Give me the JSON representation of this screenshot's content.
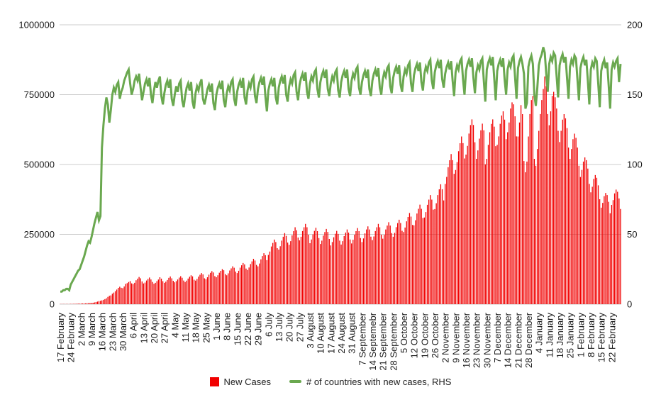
{
  "legend": {
    "new_cases": {
      "label": "New Cases",
      "color": "#f10000"
    },
    "countries": {
      "label": "# of countries with new cases, RHS",
      "color": "#6aa84f"
    }
  },
  "chart_data": {
    "type": "combo (bar + line)",
    "title": "",
    "grid": true,
    "legend_position": "bottom",
    "background": "#ffffff",
    "gridline_color": "#cccccc",
    "axis_text_color": "#1a1a1a",
    "left_axis": {
      "series": "New Cases",
      "range": [
        0,
        1000000
      ],
      "ticks": [
        "0",
        "250000",
        "500000",
        "750000",
        "1000000"
      ]
    },
    "right_axis": {
      "series": "# of countries with new cases, RHS",
      "range": [
        0,
        200
      ],
      "ticks": [
        "0",
        "50",
        "100",
        "150",
        "200"
      ]
    },
    "x_tick_interval_days": 7,
    "x_tick_labels": [
      "17 February",
      "24 February",
      "2 March",
      "9 March",
      "16 March",
      "23 March",
      "30 March",
      "6 April",
      "13 April",
      "20 April",
      "27 April",
      "4 May",
      "11 May",
      "18 May",
      "25 May",
      "1 June",
      "8 June",
      "15 June",
      "22 June",
      "29 June",
      "6 July",
      "13 July",
      "20 July",
      "27 July",
      "3 August",
      "10 August",
      "17 August",
      "24 August",
      "31 August",
      "7 September",
      "14 Septemebr",
      "21 September",
      "28 September",
      "5 October",
      "12 October",
      "19 October",
      "26 October",
      "2 November",
      "9 November",
      "16 November",
      "23 November",
      "30 November",
      "7 December",
      "14 December",
      "21 December",
      "28 December",
      "4 January",
      "11 January",
      "18 January",
      "25 January",
      "1 February",
      "8 February",
      "15 February",
      "22 February"
    ],
    "series": [
      {
        "name": "New Cases",
        "type": "bar",
        "axis": "left",
        "color": "#f10000",
        "values": [
          600,
          500,
          500,
          550,
          600,
          700,
          650,
          900,
          1100,
          1250,
          1400,
          1550,
          1800,
          2000,
          2200,
          2400,
          2650,
          2900,
          3300,
          3800,
          4100,
          4500,
          5100,
          6500,
          7600,
          9100,
          11000,
          12100,
          13500,
          15600,
          18200,
          21300,
          26100,
          30200,
          31300,
          37400,
          41500,
          46600,
          52300,
          58400,
          62500,
          58600,
          57400,
          63500,
          72600,
          75300,
          79400,
          82500,
          74600,
          72400,
          76500,
          85600,
          91300,
          97400,
          92500,
          81600,
          74400,
          77500,
          84600,
          90300,
          95400,
          88500,
          79600,
          73400,
          76500,
          82600,
          88300,
          96400,
          91500,
          82600,
          76400,
          80500,
          86600,
          94300,
          99400,
          92500,
          83600,
          78400,
          82500,
          88600,
          95300,
          100400,
          94500,
          84600,
          79400,
          84500,
          91600,
          98300,
          103400,
          99500,
          87600,
          84400,
          90500,
          98600,
          105300,
          111400,
          106500,
          92600,
          89400,
          96500,
          105600,
          112300,
          118400,
          113500,
          100600,
          96400,
          103500,
          112600,
          119300,
          125400,
          121500,
          107600,
          103400,
          110500,
          120600,
          128300,
          135400,
          130500,
          116600,
          111400,
          119500,
          130600,
          139300,
          147400,
          142500,
          127600,
          122400,
          131500,
          143600,
          153300,
          162400,
          156500,
          140600,
          135400,
          145500,
          160600,
          172300,
          182400,
          175500,
          157600,
          176400,
          188500,
          206600,
          219300,
          231400,
          222500,
          200600,
          195400,
          207500,
          227600,
          241300,
          254400,
          244500,
          220600,
          212400,
          225500,
          246600,
          261300,
          275400,
          264500,
          238600,
          228400,
          241500,
          261600,
          275300,
          287400,
          275500,
          248600,
          218400,
          231500,
          249600,
          262300,
          273400,
          261500,
          236600,
          215400,
          227500,
          245600,
          258300,
          269400,
          258500,
          233600,
          210400,
          222500,
          239600,
          252300,
          262400,
          251500,
          227600,
          213400,
          225500,
          243600,
          256300,
          267400,
          256500,
          231600,
          217400,
          230500,
          248600,
          261300,
          272400,
          261500,
          236600,
          222400,
          235500,
          253600,
          267300,
          278400,
          267500,
          241600,
          229400,
          242500,
          261600,
          275300,
          287400,
          275500,
          248600,
          234400,
          248500,
          267600,
          281300,
          293400,
          281500,
          254600,
          241400,
          255500,
          275600,
          290300,
          302400,
          290500,
          262600,
          258400,
          274500,
          296600,
          312300,
          326400,
          313500,
          283600,
          282400,
          300500,
          324600,
          341300,
          356400,
          341500,
          308600,
          310400,
          329500,
          355600,
          374300,
          390400,
          374500,
          338600,
          340400,
          361500,
          390600,
          411300,
          429400,
          411500,
          371600,
          430400,
          455500,
          490600,
          515300,
          537400,
          515500,
          466600,
          480400,
          508500,
          547600,
          576300,
          600400,
          576500,
          521600,
          535400,
          566500,
          610600,
          641300,
          661400,
          641500,
          579600,
          520400,
          550500,
          592600,
          622300,
          646400,
          622500,
          500600,
          520400,
          570500,
          615600,
          645300,
          661400,
          635500,
          565600,
          570400,
          600500,
          645600,
          675300,
          690400,
          660500,
          590600,
          615400,
          650500,
          700600,
          722300,
          715400,
          672500,
          600600,
          600400,
          650500,
          712600,
          680300,
          512400,
          472500,
          510600,
          600400,
          680500,
          730600,
          745300,
          520400,
          495500,
          555600,
          620400,
          680500,
          730600,
          770300,
          815400,
          780500,
          680600,
          640400,
          690500,
          745600,
          760300,
          740400,
          700500,
          620600,
          580400,
          620500,
          660600,
          680300,
          665400,
          630500,
          560600,
          520400,
          555500,
          590600,
          610300,
          595400,
          560500,
          495600,
          455400,
          480500,
          510600,
          525300,
          515400,
          485500,
          430600,
          400400,
          420500,
          448600,
          462300,
          452400,
          425500,
          375600,
          345400,
          362500,
          386600,
          398300,
          390400,
          366500,
          325600,
          355400,
          372500,
          396600,
          410300,
          402400,
          378500,
          340600
        ]
      },
      {
        "name": "# of countries with new cases, RHS",
        "type": "line",
        "axis": "right",
        "color": "#6aa84f",
        "values": [
          9,
          9,
          10,
          10,
          11,
          11,
          10,
          14,
          16,
          18,
          20,
          22,
          24,
          25,
          28,
          31,
          34,
          38,
          42,
          45,
          44,
          48,
          53,
          58,
          62,
          66,
          60,
          63,
          112,
          128,
          140,
          148,
          143,
          130,
          139,
          150,
          155,
          152,
          157,
          159,
          147,
          152,
          155,
          160,
          163,
          166,
          168,
          158,
          150,
          154,
          160,
          163,
          160,
          165,
          155,
          146,
          152,
          158,
          161,
          156,
          162,
          150,
          144,
          153,
          159,
          155,
          160,
          163,
          149,
          143,
          151,
          157,
          160,
          155,
          161,
          147,
          142,
          150,
          156,
          152,
          158,
          160,
          146,
          141,
          149,
          155,
          158,
          153,
          159,
          145,
          140,
          151,
          156,
          153,
          158,
          161,
          147,
          143,
          148,
          154,
          157,
          152,
          158,
          144,
          139,
          150,
          155,
          158,
          154,
          160,
          146,
          141,
          151,
          156,
          153,
          159,
          161,
          147,
          142,
          152,
          157,
          160,
          155,
          162,
          148,
          143,
          153,
          158,
          155,
          161,
          163,
          149,
          144,
          154,
          159,
          162,
          157,
          163,
          149,
          138,
          153,
          158,
          161,
          156,
          162,
          148,
          143,
          155,
          160,
          163,
          158,
          164,
          150,
          145,
          156,
          161,
          158,
          164,
          166,
          152,
          146,
          157,
          162,
          165,
          160,
          166,
          152,
          147,
          158,
          163,
          160,
          166,
          168,
          154,
          148,
          159,
          164,
          167,
          162,
          168,
          154,
          149,
          158,
          163,
          160,
          166,
          168,
          153,
          148,
          159,
          164,
          167,
          162,
          168,
          154,
          149,
          160,
          165,
          162,
          168,
          170,
          155,
          150,
          159,
          164,
          167,
          162,
          168,
          154,
          149,
          160,
          165,
          168,
          163,
          169,
          155,
          150,
          161,
          166,
          163,
          169,
          171,
          156,
          151,
          162,
          167,
          170,
          165,
          171,
          157,
          152,
          163,
          168,
          165,
          171,
          173,
          158,
          152,
          164,
          169,
          172,
          167,
          173,
          159,
          153,
          165,
          170,
          167,
          173,
          175,
          160,
          154,
          166,
          171,
          174,
          169,
          175,
          161,
          155,
          165,
          170,
          173,
          168,
          174,
          160,
          149,
          166,
          171,
          168,
          174,
          176,
          161,
          150,
          167,
          172,
          175,
          170,
          176,
          162,
          151,
          166,
          171,
          168,
          174,
          176,
          160,
          145,
          168,
          173,
          176,
          171,
          177,
          162,
          146,
          167,
          172,
          175,
          170,
          176,
          161,
          150,
          168,
          173,
          170,
          176,
          178,
          163,
          147,
          169,
          174,
          177,
          172,
          165,
          140,
          144,
          170,
          175,
          178,
          172,
          150,
          142,
          155,
          171,
          176,
          179,
          184,
          180,
          165,
          152,
          172,
          177,
          174,
          180,
          178,
          163,
          148,
          171,
          176,
          179,
          173,
          177,
          162,
          147,
          170,
          175,
          172,
          178,
          176,
          161,
          146,
          169,
          174,
          177,
          171,
          175,
          160,
          143,
          168,
          173,
          170,
          176,
          174,
          158,
          141,
          167,
          172,
          175,
          169,
          173,
          157,
          140,
          168,
          173,
          170,
          174,
          176,
          159,
          172
        ]
      }
    ]
  }
}
